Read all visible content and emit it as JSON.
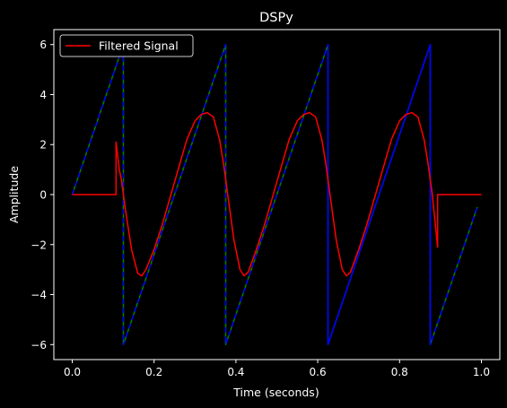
{
  "chart_data": {
    "type": "line",
    "title": "DSPy",
    "xlabel": "Time (seconds)",
    "ylabel": "Amplitude",
    "xlim": [
      -0.045,
      1.045
    ],
    "ylim": [
      -6.6,
      6.6
    ],
    "xticks": [
      0.0,
      0.2,
      0.4,
      0.6,
      0.8,
      1.0
    ],
    "xtick_labels": [
      "0.0",
      "0.2",
      "0.4",
      "0.6",
      "0.8",
      "1.0"
    ],
    "yticks": [
      -6,
      -4,
      -2,
      0,
      2,
      4,
      6
    ],
    "ytick_labels": [
      "−6",
      "−4",
      "−2",
      "0",
      "2",
      "4",
      "6"
    ],
    "grid": false,
    "legend_position": "upper-left",
    "background": "#000000",
    "foreground": "#ffffff",
    "series": [
      {
        "key": "green",
        "color": "#008000",
        "style": "solid",
        "x": [
          0.0,
          0.125,
          0.125,
          0.375,
          0.375,
          0.625,
          0.625,
          0.875,
          0.875,
          0.99
        ],
        "y": [
          0,
          6,
          -6,
          6,
          -6,
          6,
          -6,
          6,
          -6,
          -0.5
        ]
      },
      {
        "key": "blue",
        "color": "#0000ff",
        "style": "dashed",
        "x": [
          0.0,
          0.125,
          0.125,
          0.375,
          0.375,
          0.625,
          0.625,
          0.875,
          0.875,
          0.99
        ],
        "y": [
          0,
          6,
          -6,
          6,
          -6,
          6,
          -6,
          6,
          -6,
          -0.5
        ]
      },
      {
        "key": "blue-solid",
        "color": "#0000ff",
        "style": "solid",
        "x": [
          0.625,
          0.625,
          0.875,
          0.875
        ],
        "y": [
          6,
          -6,
          6,
          -6
        ]
      },
      {
        "name": "Filtered Signal",
        "key": "filtered",
        "color": "#ff0000",
        "style": "solid",
        "x": [
          0.0,
          0.05,
          0.107,
          0.107,
          0.115,
          0.12,
          0.13,
          0.145,
          0.16,
          0.17,
          0.18,
          0.2,
          0.22,
          0.25,
          0.28,
          0.3,
          0.315,
          0.33,
          0.345,
          0.36,
          0.37,
          0.38,
          0.395,
          0.41,
          0.42,
          0.43,
          0.45,
          0.47,
          0.5,
          0.53,
          0.55,
          0.565,
          0.58,
          0.595,
          0.61,
          0.62,
          0.63,
          0.645,
          0.66,
          0.67,
          0.68,
          0.7,
          0.72,
          0.75,
          0.78,
          0.8,
          0.815,
          0.83,
          0.845,
          0.86,
          0.87,
          0.88,
          0.893,
          0.893,
          0.95,
          1.0
        ],
        "y": [
          0,
          0,
          0,
          2.1,
          1.0,
          0.6,
          -0.6,
          -2.2,
          -3.15,
          -3.25,
          -3.0,
          -2.2,
          -1.2,
          0.5,
          2.2,
          2.95,
          3.2,
          3.28,
          3.1,
          2.2,
          1.2,
          0.0,
          -1.8,
          -3.0,
          -3.25,
          -3.1,
          -2.2,
          -1.2,
          0.5,
          2.2,
          2.95,
          3.2,
          3.28,
          3.1,
          2.2,
          1.2,
          0.0,
          -1.8,
          -3.0,
          -3.25,
          -3.1,
          -2.2,
          -1.2,
          0.5,
          2.2,
          2.95,
          3.2,
          3.28,
          3.1,
          2.2,
          1.2,
          0.0,
          -2.1,
          0.0,
          0.0,
          0.0
        ]
      }
    ]
  }
}
